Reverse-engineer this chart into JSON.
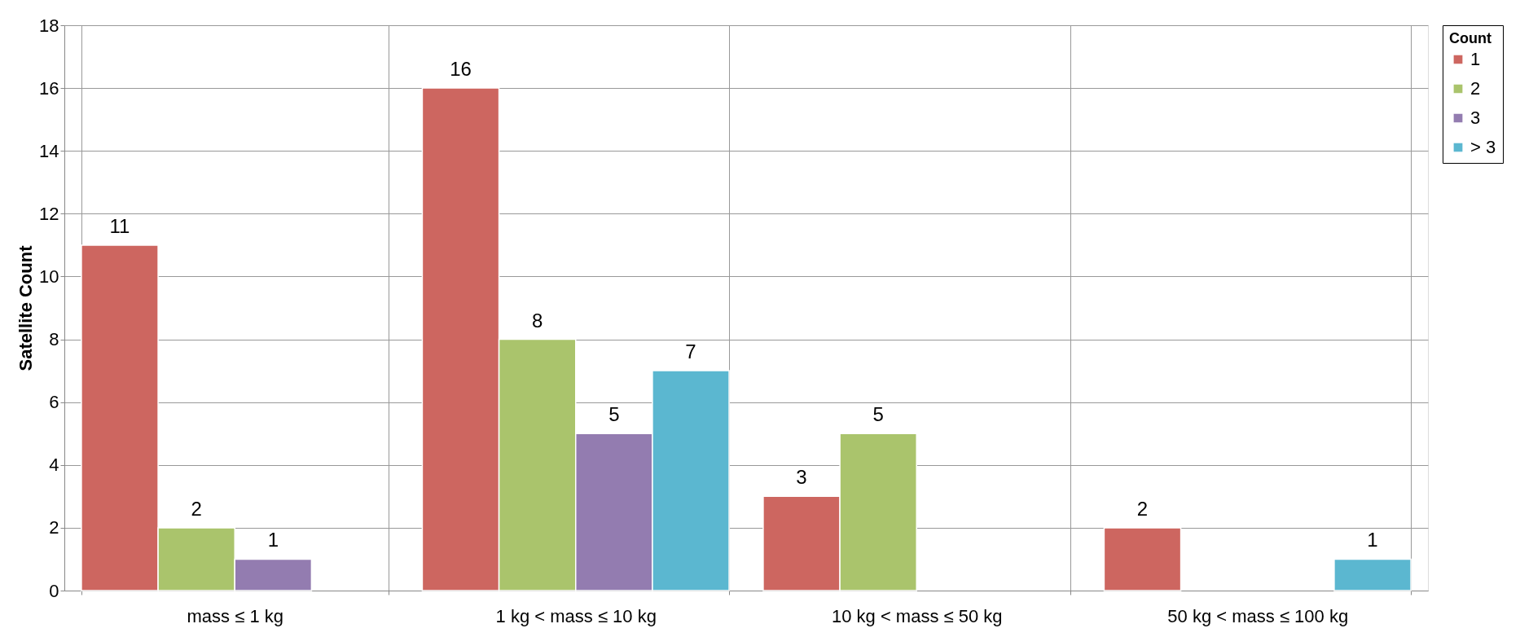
{
  "chart_data": {
    "type": "bar",
    "ylabel": "Satellite Count",
    "legend_title": "Count",
    "categories": [
      "mass ≤ 1 kg",
      "1 kg < mass ≤ 10 kg",
      "10 kg < mass ≤ 50 kg",
      "50 kg < mass ≤ 100 kg"
    ],
    "series": [
      {
        "name": "1",
        "color": "#cd6660",
        "values": [
          11,
          16,
          3,
          2
        ]
      },
      {
        "name": "2",
        "color": "#aac46c",
        "values": [
          2,
          8,
          5,
          null
        ]
      },
      {
        "name": "3",
        "color": "#937cb0",
        "values": [
          1,
          5,
          null,
          null
        ]
      },
      {
        "name": "> 3",
        "color": "#5bb7d0",
        "values": [
          null,
          7,
          null,
          1
        ]
      }
    ],
    "ylim": [
      0,
      18
    ],
    "yticks": [
      0,
      2,
      4,
      6,
      8,
      10,
      12,
      14,
      16,
      18
    ],
    "grid": true,
    "legend": "right",
    "data_labels": true
  }
}
